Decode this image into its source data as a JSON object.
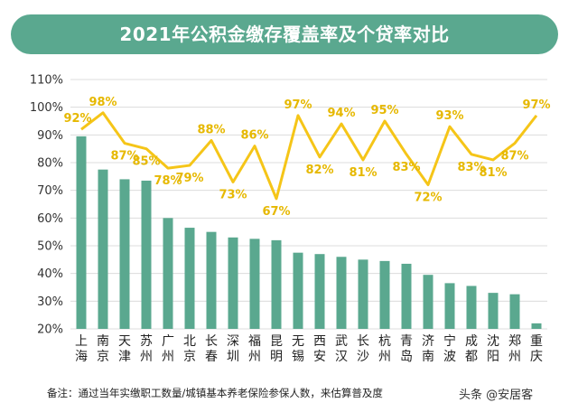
{
  "chart_data": {
    "type": "bar",
    "title": "2021年公积金缴存覆盖率及个贷率对比",
    "xlabel": "",
    "ylabel": "",
    "ylim": [
      20,
      110
    ],
    "yticks": [
      "20%",
      "30%",
      "40%",
      "50%",
      "60%",
      "70%",
      "80%",
      "90%",
      "100%",
      "110%"
    ],
    "grid": true,
    "categories": [
      "上海",
      "南京",
      "天津",
      "苏州",
      "广州",
      "北京",
      "长春",
      "深圳",
      "福州",
      "昆明",
      "无锡",
      "西安",
      "武汉",
      "长沙",
      "杭州",
      "青岛",
      "济南",
      "宁波",
      "成都",
      "沈阳",
      "郑州",
      "重庆"
    ],
    "category_lines": [
      [
        "上",
        "海"
      ],
      [
        "南",
        "京"
      ],
      [
        "天",
        "津"
      ],
      [
        "苏",
        "州"
      ],
      [
        "广",
        "州"
      ],
      [
        "北",
        "京"
      ],
      [
        "长",
        "春"
      ],
      [
        "深",
        "圳"
      ],
      [
        "福",
        "州"
      ],
      [
        "昆",
        "明"
      ],
      [
        "无",
        "锡"
      ],
      [
        "西",
        "安"
      ],
      [
        "武",
        "汉"
      ],
      [
        "长",
        "沙"
      ],
      [
        "杭",
        "州"
      ],
      [
        "青",
        "岛"
      ],
      [
        "济",
        "南"
      ],
      [
        "宁",
        "波"
      ],
      [
        "成",
        "都"
      ],
      [
        "沈",
        "阳"
      ],
      [
        "郑",
        "州"
      ],
      [
        "重",
        "庆"
      ]
    ],
    "series": [
      {
        "kind": "bar",
        "values": [
          89.5,
          77.5,
          74,
          73.5,
          60,
          56.5,
          55,
          53,
          52.5,
          52,
          47.5,
          47,
          46,
          45,
          44.5,
          43.5,
          39.5,
          36.5,
          35.5,
          33,
          32.5,
          22
        ]
      },
      {
        "kind": "line",
        "values": [
          92,
          98,
          87,
          85,
          78,
          79,
          88,
          73,
          86,
          67,
          97,
          82,
          94,
          81,
          95,
          83,
          72,
          93,
          83,
          81,
          87,
          97
        ]
      }
    ],
    "line_labels": [
      "92%",
      "98%",
      "87%",
      "85%",
      "78%",
      "79%",
      "88%",
      "73%",
      "86%",
      "67%",
      "97%",
      "82%",
      "94%",
      "81%",
      "95%",
      "83%",
      "72%",
      "93%",
      "83%",
      "81%",
      "87%",
      "97%"
    ],
    "colors": {
      "bar": "#5aa88f",
      "line": "#f5c518",
      "label": "#e6b800"
    }
  },
  "footnote": "备注：通过当年实缴职工数量/城镇基本养老保险参保人数，来估算普及度",
  "watermark": "头条 @安居客"
}
